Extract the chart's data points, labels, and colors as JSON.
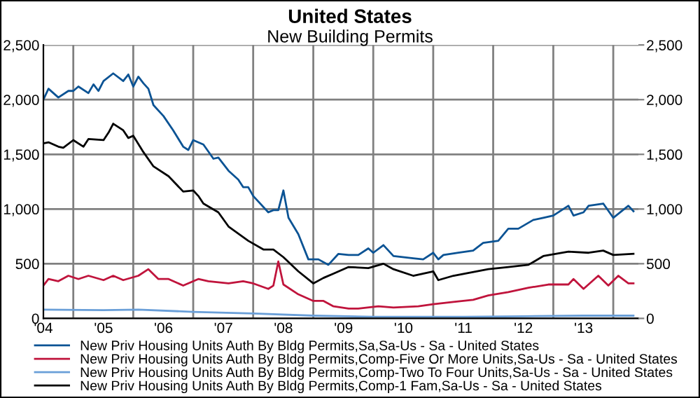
{
  "chart_data": {
    "type": "line",
    "title": "United States",
    "subtitle": "New Building Permits",
    "xlim": [
      "2004-01",
      "2013-12"
    ],
    "xticks": [
      {
        "value": "2004-01",
        "label": "'04"
      },
      {
        "value": "2004-07",
        "label": null
      },
      {
        "value": "2005-01",
        "label": "'05"
      },
      {
        "value": "2005-07",
        "label": null
      },
      {
        "value": "2006-01",
        "label": "'06"
      },
      {
        "value": "2006-07",
        "label": null
      },
      {
        "value": "2007-01",
        "label": "'07"
      },
      {
        "value": "2007-07",
        "label": null
      },
      {
        "value": "2008-01",
        "label": "'08"
      },
      {
        "value": "2008-07",
        "label": null
      },
      {
        "value": "2009-01",
        "label": "'09"
      },
      {
        "value": "2009-07",
        "label": null
      },
      {
        "value": "2010-01",
        "label": "'10"
      },
      {
        "value": "2010-07",
        "label": null
      },
      {
        "value": "2011-01",
        "label": "'11"
      },
      {
        "value": "2011-07",
        "label": null
      },
      {
        "value": "2012-01",
        "label": "'12"
      },
      {
        "value": "2012-07",
        "label": null
      },
      {
        "value": "2013-01",
        "label": "'13"
      },
      {
        "value": "2013-07",
        "label": null
      }
    ],
    "ylim": [
      0,
      2500
    ],
    "yticks": [
      0,
      500,
      {
        "value": 1000,
        "label": "1,000"
      },
      {
        "value": 1500,
        "label": "1,500"
      },
      {
        "value": 2000,
        "label": "2,000"
      },
      {
        "value": 2500,
        "label": "2,500"
      }
    ],
    "y2lim": [
      0,
      2500
    ],
    "y2ticks": [
      0,
      500,
      {
        "value": 1000,
        "label": "1,000"
      },
      {
        "value": 1500,
        "label": "1,500"
      },
      {
        "value": 2000,
        "label": "2,000"
      },
      {
        "value": 2500,
        "label": "2,500"
      }
    ],
    "grid": true,
    "legend": "bottom",
    "series": [
      {
        "name": "New Priv Housing Units Auth By Bldg Permits,Sa,Sa-Us - Sa - United States",
        "color": "#0b5394",
        "x": [
          "2004-01",
          "2004-02",
          "2004-04",
          "2004-06",
          "2004-07",
          "2004-08",
          "2004-10",
          "2004-11",
          "2004-12",
          "2005-01",
          "2005-03",
          "2005-05",
          "2005-06",
          "2005-07",
          "2005-08",
          "2005-09",
          "2005-10",
          "2005-11",
          "2006-01",
          "2006-03",
          "2006-05",
          "2006-06",
          "2006-07",
          "2006-09",
          "2006-11",
          "2006-12",
          "2007-02",
          "2007-04",
          "2007-05",
          "2007-06",
          "2007-07",
          "2007-10",
          "2007-11",
          "2007-12",
          "2008-01",
          "2008-02",
          "2008-04",
          "2008-06",
          "2008-08",
          "2008-10",
          "2008-12",
          "2009-02",
          "2009-04",
          "2009-06",
          "2009-07",
          "2009-09",
          "2009-11",
          "2010-03",
          "2010-05",
          "2010-07",
          "2010-08",
          "2010-09",
          "2010-12",
          "2011-03",
          "2011-05",
          "2011-08",
          "2011-10",
          "2011-12",
          "2012-03",
          "2012-05",
          "2012-07",
          "2012-10",
          "2012-11",
          "2013-01",
          "2013-02",
          "2013-05",
          "2013-07",
          "2013-10",
          "2013-11"
        ],
        "values": [
          2000,
          2100,
          2020,
          2080,
          2080,
          2120,
          2060,
          2140,
          2080,
          2170,
          2240,
          2170,
          2230,
          2120,
          2210,
          2150,
          2100,
          1950,
          1850,
          1720,
          1570,
          1540,
          1630,
          1590,
          1460,
          1470,
          1350,
          1270,
          1200,
          1200,
          1120,
          970,
          990,
          990,
          1170,
          920,
          770,
          540,
          540,
          490,
          590,
          580,
          580,
          640,
          600,
          670,
          570,
          550,
          540,
          600,
          540,
          580,
          600,
          620,
          690,
          710,
          820,
          820,
          900,
          920,
          940,
          1030,
          940,
          970,
          1030,
          1050,
          920,
          1030,
          980
        ]
      },
      {
        "name": "New Priv Housing Units Auth By Bldg Permits,Comp-Five Or More Units,Sa-Us - Sa - United States",
        "color": "#c0143c",
        "x": [
          "2004-01",
          "2004-02",
          "2004-04",
          "2004-06",
          "2004-08",
          "2004-10",
          "2005-01",
          "2005-03",
          "2005-05",
          "2005-08",
          "2005-10",
          "2005-12",
          "2006-02",
          "2006-05",
          "2006-08",
          "2006-10",
          "2007-02",
          "2007-05",
          "2007-07",
          "2007-10",
          "2007-11",
          "2007-12",
          "2008-01",
          "2008-04",
          "2008-07",
          "2008-09",
          "2008-11",
          "2009-02",
          "2009-04",
          "2009-08",
          "2009-11",
          "2010-04",
          "2010-07",
          "2010-11",
          "2011-03",
          "2011-06",
          "2011-10",
          "2012-02",
          "2012-06",
          "2012-10",
          "2012-11",
          "2013-01",
          "2013-04",
          "2013-06",
          "2013-08",
          "2013-10",
          "2013-11"
        ],
        "values": [
          300,
          360,
          340,
          390,
          360,
          390,
          350,
          390,
          350,
          390,
          450,
          360,
          360,
          300,
          360,
          340,
          320,
          340,
          320,
          270,
          300,
          520,
          310,
          220,
          160,
          160,
          110,
          90,
          90,
          110,
          100,
          110,
          130,
          150,
          170,
          210,
          240,
          280,
          310,
          310,
          360,
          270,
          390,
          300,
          390,
          320,
          320
        ]
      },
      {
        "name": "New Priv Housing Units Auth By Bldg Permits,Comp-Two To Four Units,Sa-Us - Sa - United States",
        "color": "#6a9fd8",
        "x": [
          "2004-01",
          "2005-01",
          "2005-08",
          "2006-07",
          "2007-07",
          "2008-07",
          "2009-07",
          "2011-01",
          "2012-01",
          "2013-01",
          "2013-11"
        ],
        "values": [
          80,
          75,
          80,
          60,
          45,
          25,
          15,
          15,
          20,
          25,
          25
        ]
      },
      {
        "name": "New Priv Housing Units Auth By Bldg Permits,Comp-1 Fam,Sa-Us - Sa - United States",
        "color": "#000000",
        "x": [
          "2004-01",
          "2004-02",
          "2004-04",
          "2004-05",
          "2004-07",
          "2004-09",
          "2004-10",
          "2005-01",
          "2005-02",
          "2005-03",
          "2005-05",
          "2005-06",
          "2005-07",
          "2005-09",
          "2005-11",
          "2006-02",
          "2006-05",
          "2006-07",
          "2006-08",
          "2006-09",
          "2006-12",
          "2007-02",
          "2007-06",
          "2007-09",
          "2007-11",
          "2008-01",
          "2008-04",
          "2008-07",
          "2008-09",
          "2008-11",
          "2009-02",
          "2009-06",
          "2009-09",
          "2009-11",
          "2010-03",
          "2010-07",
          "2010-08",
          "2010-11",
          "2011-06",
          "2011-10",
          "2012-02",
          "2012-05",
          "2012-10",
          "2013-02",
          "2013-05",
          "2013-07",
          "2013-11"
        ],
        "values": [
          1600,
          1610,
          1570,
          1560,
          1630,
          1570,
          1640,
          1630,
          1700,
          1780,
          1720,
          1650,
          1670,
          1520,
          1390,
          1300,
          1160,
          1170,
          1120,
          1050,
          970,
          840,
          710,
          630,
          630,
          560,
          430,
          320,
          370,
          410,
          470,
          460,
          500,
          450,
          390,
          430,
          350,
          390,
          450,
          470,
          490,
          570,
          610,
          600,
          620,
          580,
          590
        ]
      }
    ]
  }
}
